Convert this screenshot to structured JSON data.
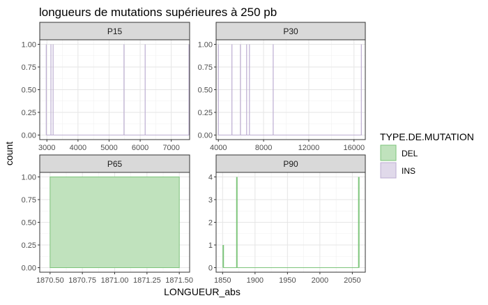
{
  "chart_data": {
    "type": "bar",
    "title": "longueurs de mutations supérieures à 250 pb",
    "xlabel": "LONGUEUR_abs",
    "ylabel": "count",
    "legend": {
      "title": "TYPE.DE.MUTATION",
      "placement": "right",
      "entries": [
        {
          "label": "DEL",
          "fill": "#c0e2bd",
          "stroke": "#7cc47a"
        },
        {
          "label": "INS",
          "fill": "#e0d9ea",
          "stroke": "#bcadd1"
        }
      ]
    },
    "grid": true,
    "panels": [
      {
        "name": "P15",
        "xlim": [
          2770,
          7590
        ],
        "xticks": [
          3000,
          4000,
          5000,
          6000,
          7000
        ],
        "ylim": [
          -0.05,
          1.05
        ],
        "yticks": [
          0,
          0.25,
          0.5,
          0.75,
          1
        ],
        "ytick_labels": [
          "0.00",
          "0.25",
          "0.50",
          "0.75",
          "1.00"
        ],
        "baseline_range": [
          2980,
          7570
        ],
        "bars": [
          {
            "type": "INS",
            "x": 2980,
            "count": 1
          },
          {
            "type": "INS",
            "x": 3130,
            "count": 1
          },
          {
            "type": "INS",
            "x": 3200,
            "count": 1
          },
          {
            "type": "INS",
            "x": 5480,
            "count": 1
          },
          {
            "type": "INS",
            "x": 6160,
            "count": 1
          },
          {
            "type": "INS",
            "x": 7570,
            "count": 1
          }
        ]
      },
      {
        "name": "P30",
        "xlim": [
          3800,
          17000
        ],
        "xticks": [
          4000,
          8000,
          12000,
          16000
        ],
        "ylim": [
          -0.05,
          1.05
        ],
        "yticks": [
          0,
          0.25,
          0.5,
          0.75,
          1
        ],
        "ytick_labels": [
          "0.00",
          "0.25",
          "0.50",
          "0.75",
          "1.00"
        ],
        "baseline_range": [
          4000,
          16700
        ],
        "bars": [
          {
            "type": "INS",
            "x": 4000,
            "count": 1
          },
          {
            "type": "INS",
            "x": 5200,
            "count": 1
          },
          {
            "type": "INS",
            "x": 5950,
            "count": 1
          },
          {
            "type": "INS",
            "x": 6500,
            "count": 1
          },
          {
            "type": "INS",
            "x": 6750,
            "count": 1
          },
          {
            "type": "INS",
            "x": 8850,
            "count": 1
          },
          {
            "type": "INS",
            "x": 16650,
            "count": 1
          }
        ]
      },
      {
        "name": "P65",
        "xlim": [
          1870.42,
          1871.58
        ],
        "xticks": [
          1870.5,
          1870.75,
          1871,
          1871.25,
          1871.5
        ],
        "xtick_labels": [
          "1870.50",
          "1870.75",
          "1871.00",
          "1871.25",
          "1871.50"
        ],
        "ylim": [
          -0.05,
          1.05
        ],
        "yticks": [
          0,
          0.25,
          0.5,
          0.75,
          1
        ],
        "ytick_labels": [
          "0.00",
          "0.25",
          "0.50",
          "0.75",
          "1.00"
        ],
        "bars": [
          {
            "type": "DEL",
            "x_start": 1870.5,
            "x_end": 1871.5,
            "count": 1
          }
        ]
      },
      {
        "name": "P90",
        "xlim": [
          1840,
          2070
        ],
        "xticks": [
          1850,
          1900,
          1950,
          2000,
          2050
        ],
        "ylim": [
          -0.2,
          4.2
        ],
        "yticks": [
          0,
          1,
          2,
          3,
          4
        ],
        "ytick_labels": [
          "0",
          "1",
          "2",
          "3",
          "4"
        ],
        "baseline_range": [
          1851,
          2060
        ],
        "bars": [
          {
            "type": "DEL",
            "x": 1851,
            "count": 1
          },
          {
            "type": "DEL",
            "x": 1872,
            "count": 4
          },
          {
            "type": "DEL",
            "x": 2060,
            "count": 4
          }
        ]
      }
    ]
  }
}
